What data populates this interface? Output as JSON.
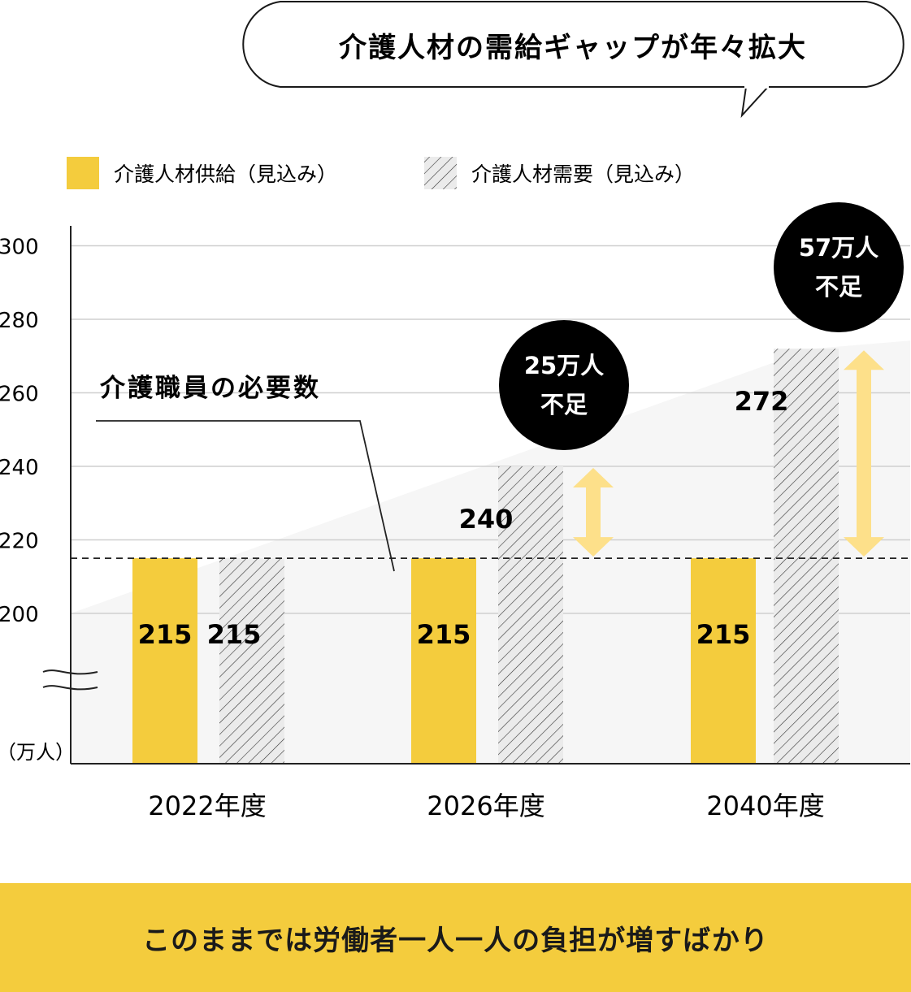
{
  "callout_title": "介護人材の需給ギャップが年々拡大",
  "chart_data": {
    "type": "bar",
    "categories": [
      "2022年度",
      "2026年度",
      "2040年度"
    ],
    "series": [
      {
        "name": "介護人材供給（見込み）",
        "values": [
          215,
          215,
          215
        ],
        "color": "#f4cc3d",
        "pattern": "solid"
      },
      {
        "name": "介護人材需要（見込み）",
        "values": [
          215,
          240,
          272
        ],
        "color": "#ebebeb",
        "pattern": "hatched"
      }
    ],
    "ylabel": "（万人）",
    "yticks": [
      200,
      220,
      240,
      260,
      280,
      300
    ],
    "ylim": [
      180,
      300
    ],
    "axis_break": true,
    "grid": true,
    "legend": "top-left",
    "reference_line": {
      "label": "介護職員の必要数",
      "value": 215,
      "style": "dashed"
    },
    "gap_badges": [
      {
        "category": "2026年度",
        "line1": "25万人",
        "line2": "不足"
      },
      {
        "category": "2040年度",
        "line1": "57万人",
        "line2": "不足"
      }
    ],
    "gap_arrow_color": "#fde08a"
  },
  "banner_text": "このままでは労働者一人一人の負担が増すばかり",
  "colors": {
    "supply": "#f4cc3d",
    "banner": "#f4cc3d",
    "badge": "#000000"
  }
}
